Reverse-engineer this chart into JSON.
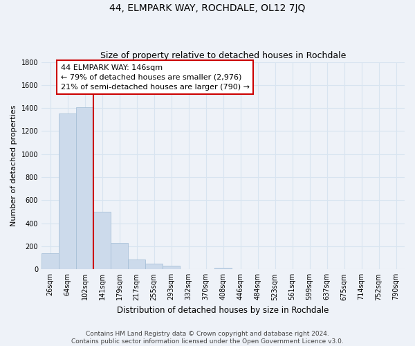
{
  "title": "44, ELMPARK WAY, ROCHDALE, OL12 7JQ",
  "subtitle": "Size of property relative to detached houses in Rochdale",
  "xlabel": "Distribution of detached houses by size in Rochdale",
  "ylabel": "Number of detached properties",
  "bar_labels": [
    "26sqm",
    "64sqm",
    "102sqm",
    "141sqm",
    "179sqm",
    "217sqm",
    "255sqm",
    "293sqm",
    "332sqm",
    "370sqm",
    "408sqm",
    "446sqm",
    "484sqm",
    "523sqm",
    "561sqm",
    "599sqm",
    "637sqm",
    "675sqm",
    "714sqm",
    "752sqm",
    "790sqm"
  ],
  "bar_values": [
    140,
    1350,
    1410,
    500,
    230,
    85,
    50,
    30,
    0,
    0,
    15,
    0,
    0,
    0,
    0,
    0,
    0,
    0,
    0,
    0,
    0
  ],
  "bar_color": "#ccdaeb",
  "bar_edge_color": "#a8c0d8",
  "vline_x_index": 3,
  "vline_color": "#cc0000",
  "annotation_line1": "44 ELMPARK WAY: 146sqm",
  "annotation_line2": "← 79% of detached houses are smaller (2,976)",
  "annotation_line3": "21% of semi-detached houses are larger (790) →",
  "annotation_box_color": "#ffffff",
  "annotation_box_edge_color": "#cc0000",
  "ylim": [
    0,
    1800
  ],
  "yticks": [
    0,
    200,
    400,
    600,
    800,
    1000,
    1200,
    1400,
    1600,
    1800
  ],
  "background_color": "#eef2f8",
  "grid_color": "#d8e4f0",
  "footer_line1": "Contains HM Land Registry data © Crown copyright and database right 2024.",
  "footer_line2": "Contains public sector information licensed under the Open Government Licence v3.0.",
  "title_fontsize": 10,
  "subtitle_fontsize": 9,
  "xlabel_fontsize": 8.5,
  "ylabel_fontsize": 8,
  "tick_fontsize": 7,
  "annotation_fontsize": 8,
  "footer_fontsize": 6.5
}
